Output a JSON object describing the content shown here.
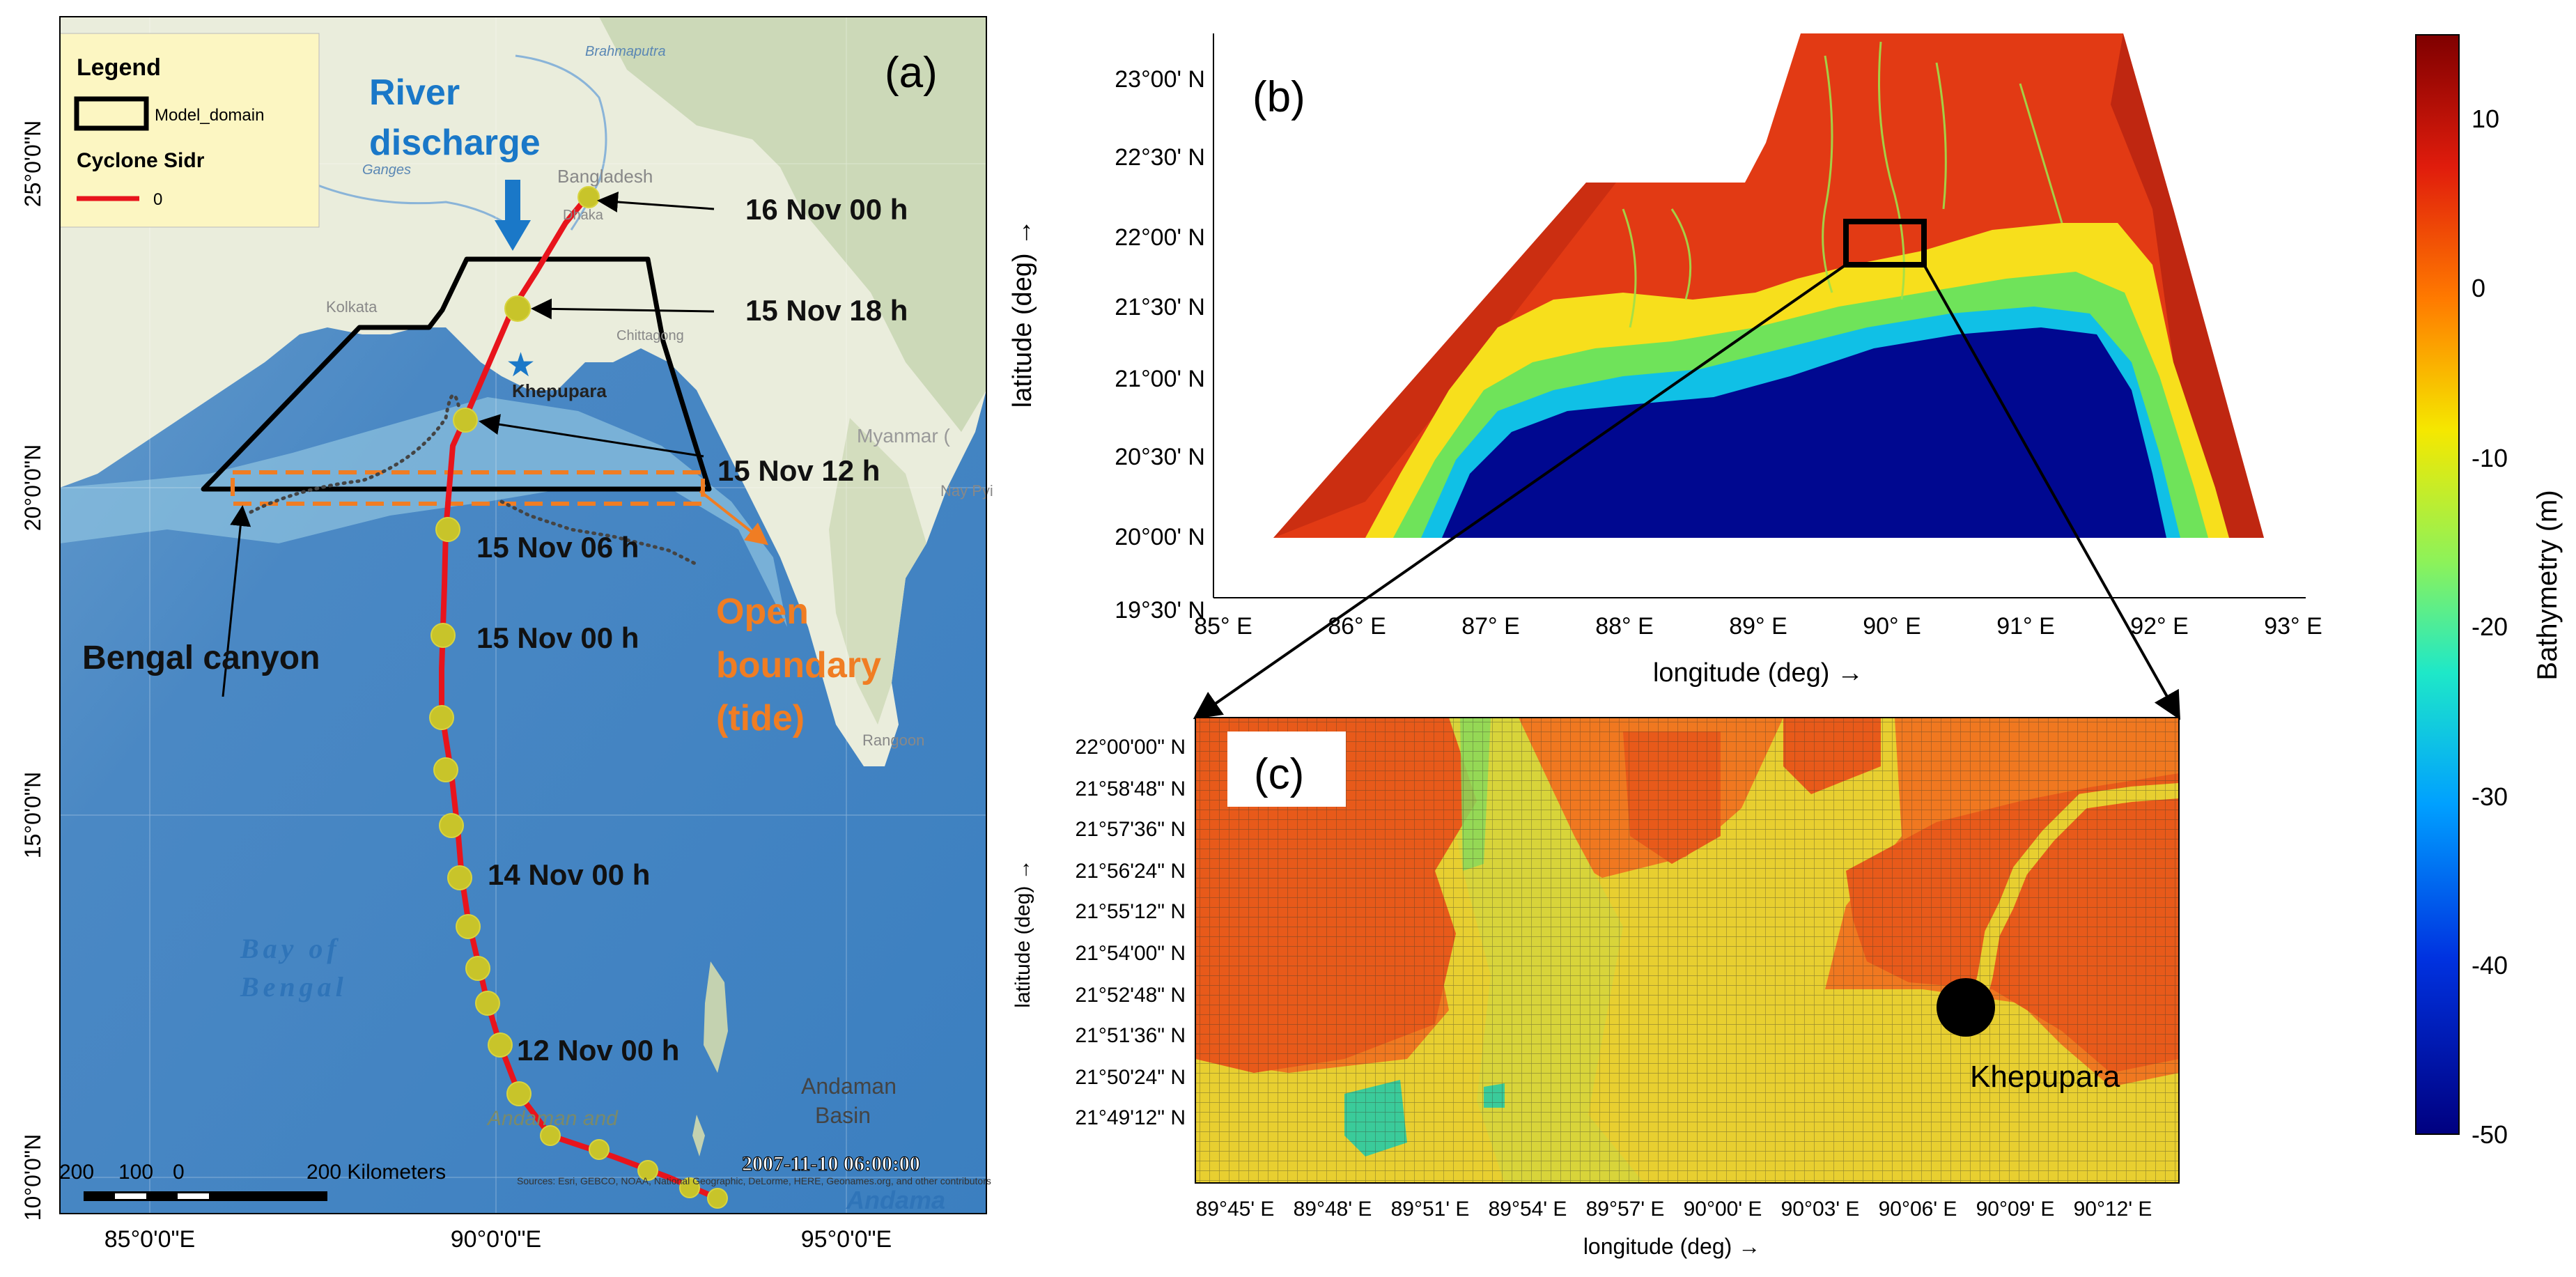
{
  "panel_a": {
    "label": "(a)",
    "legend": {
      "title": "Legend",
      "model_domain_label": "Model_domain",
      "cyclone_title": "Cyclone Sidr",
      "track_value": "0"
    },
    "annotations": {
      "river_discharge": "River discharge",
      "river_line1": "River",
      "river_line2": "discharge",
      "bengal_canyon": "Bengal canyon",
      "open_boundary_line1": "Open",
      "open_boundary_line2": "boundary",
      "open_boundary_line3": "(tide)",
      "khepupara": "Khepupara",
      "bay_line1": "Bay of",
      "bay_line2": "Bengal",
      "andaman_basin_line1": "Andaman",
      "andaman_basin_line2": "Basin",
      "andaman_islands": "Andaman and",
      "andaman_sea": "Andama",
      "timestamp": "2007-11-10 06:00:00",
      "myanmar": "Myanmar (",
      "brahmaputra": "Brahmaputra",
      "ganges": "Ganges",
      "bangladesh": "Bangladesh",
      "dhaka": "Dhaka",
      "kolkata": "Kolkata",
      "chittagong": "Chittagong",
      "rangoon": "Rangoon",
      "nay_pyi": "Nay Pyi",
      "attribution": "Sources: Esri, GEBCO, NOAA, National Geographic, DeLorme, HERE, Geonames.org, and other contributors"
    },
    "times": [
      {
        "label": "16 Nov 00 h"
      },
      {
        "label": "15 Nov 18 h"
      },
      {
        "label": "15 Nov 12 h"
      },
      {
        "label": "15 Nov 06 h"
      },
      {
        "label": "15 Nov 00 h"
      },
      {
        "label": "14 Nov 00 h"
      },
      {
        "label": "12 Nov 00 h"
      }
    ],
    "scale_labels": [
      "200",
      "100",
      "0",
      "200 Kilometers"
    ],
    "lat_ticks": [
      "25°0'0\"N",
      "20°0'0\"N",
      "15°0'0\"N",
      "10°0'0\"N"
    ],
    "lon_ticks": [
      "85°0'0\"E",
      "90°0'0\"E",
      "95°0'0\"E"
    ],
    "colors": {
      "track": "#e8141c",
      "points": "#c8c42a",
      "domain": "#000000",
      "boundary": "#f07d23",
      "river": "#1a78c8"
    }
  },
  "panel_b": {
    "label": "(b)",
    "lat_ticks": [
      "23°00' N",
      "22°30' N",
      "22°00' N",
      "21°30' N",
      "21°00' N",
      "20°30' N",
      "20°00' N",
      "19°30' N"
    ],
    "lon_ticks": [
      "85° E",
      "86° E",
      "87° E",
      "88° E",
      "89° E",
      "90° E",
      "91° E",
      "92° E",
      "93° E"
    ],
    "xlabel": "longitude (deg) →",
    "ylabel": "latitude (deg) →"
  },
  "panel_c": {
    "label": "(c)",
    "lat_ticks": [
      "22°00'00\" N",
      "21°58'48\" N",
      "21°57'36\" N",
      "21°56'24\" N",
      "21°55'12\" N",
      "21°54'00\" N",
      "21°52'48\" N",
      "21°51'36\" N",
      "21°50'24\" N",
      "21°49'12\" N"
    ],
    "lon_ticks": [
      "89°45' E",
      "89°48' E",
      "89°51' E",
      "89°54' E",
      "89°57' E",
      "90°00' E",
      "90°03' E",
      "90°06' E",
      "90°09' E",
      "90°12' E"
    ],
    "xlabel": "longitude (deg) →",
    "ylabel": "latitude (deg) →",
    "station": "Khepupara"
  },
  "colorbar": {
    "label": "Bathymetry (m)",
    "ticks": [
      "10",
      "0",
      "-10",
      "-20",
      "-30",
      "-40",
      "-50"
    ],
    "range": [
      -50,
      15
    ]
  }
}
